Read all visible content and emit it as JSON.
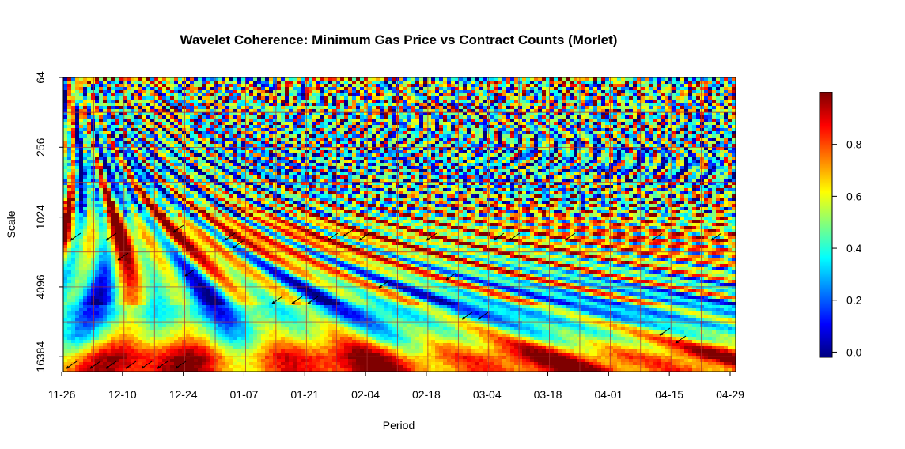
{
  "chart_data": {
    "type": "heatmap",
    "title": "Wavelet Coherence: Minimum Gas Price vs  Contract Counts (Morlet)",
    "xlabel": "Period",
    "ylabel": "Scale",
    "x_ticks": [
      "11-26",
      "12-10",
      "12-24",
      "01-07",
      "01-21",
      "02-04",
      "02-18",
      "03-04",
      "03-18",
      "04-01",
      "04-15",
      "04-29"
    ],
    "y_ticks": [
      "64",
      "256",
      "1024",
      "4096",
      "16384"
    ],
    "y_scale": "log2",
    "ylim": [
      64,
      22000
    ],
    "colorbar": {
      "ticks": [
        "0.0",
        "0.2",
        "0.4",
        "0.6",
        "0.8"
      ],
      "tick_values": [
        0,
        0.2,
        0.4,
        0.6,
        0.8
      ],
      "range": [
        -0.02,
        1.0
      ],
      "colors": [
        "#00007F",
        "#0000FF",
        "#007FFF",
        "#00FFFF",
        "#7FFF7F",
        "#FFFF00",
        "#FF7F00",
        "#FF0000",
        "#7F0000"
      ]
    },
    "grid": true,
    "bands": [
      {
        "scale": 16384,
        "coherence": 0.85
      },
      {
        "scale": 11000,
        "coherence": 0.55
      },
      {
        "scale": 7000,
        "coherence": 0.35
      },
      {
        "scale": 4096,
        "coherence": 0.45
      },
      {
        "scale": 1500,
        "coherence": 0.7
      },
      {
        "scale": 400,
        "coherence": 0.35
      },
      {
        "scale": 100,
        "coherence": 0.5
      }
    ]
  }
}
